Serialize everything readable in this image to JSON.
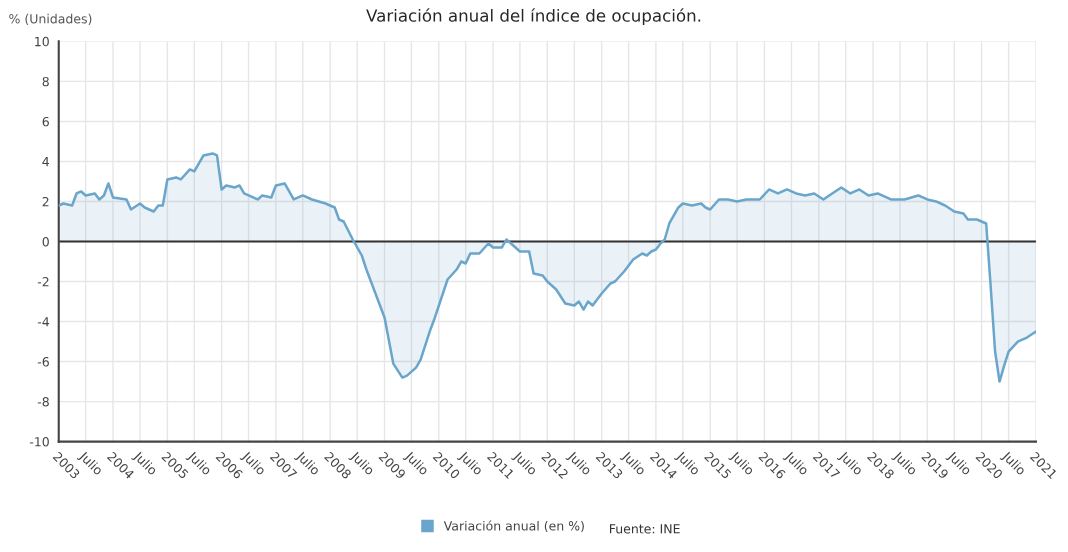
{
  "chart_data": {
    "type": "area",
    "title": "Variación anual del índice de ocupación.",
    "ylabel": "% (Unidades)",
    "annotations": [
      "Fuente: INE"
    ],
    "x": [
      "2003-01",
      "2003-02",
      "2003-04",
      "2003-05",
      "2003-06",
      "2003-07",
      "2003-09",
      "2003-10",
      "2003-11",
      "2003-12",
      "2004-01",
      "2004-04",
      "2004-05",
      "2004-07",
      "2004-08",
      "2004-10",
      "2004-11",
      "2004-12",
      "2005-01",
      "2005-03",
      "2005-04",
      "2005-06",
      "2005-07",
      "2005-09",
      "2005-11",
      "2005-12",
      "2006-01",
      "2006-02",
      "2006-04",
      "2006-05",
      "2006-06",
      "2006-09",
      "2006-10",
      "2006-12",
      "2007-01",
      "2007-03",
      "2007-05",
      "2007-07",
      "2007-09",
      "2007-12",
      "2008-02",
      "2008-03",
      "2008-04",
      "2008-06",
      "2008-08",
      "2008-09",
      "2009-01",
      "2009-03",
      "2009-05",
      "2009-06",
      "2009-08",
      "2009-09",
      "2009-11",
      "2009-12",
      "2010-03",
      "2010-05",
      "2010-06",
      "2010-07",
      "2010-08",
      "2010-10",
      "2010-12",
      "2011-01",
      "2011-03",
      "2011-04",
      "2011-06",
      "2011-07",
      "2011-09",
      "2011-10",
      "2011-12",
      "2012-01",
      "2012-03",
      "2012-05",
      "2012-07",
      "2012-08",
      "2012-09",
      "2012-10",
      "2012-11",
      "2013-01",
      "2013-03",
      "2013-04",
      "2013-06",
      "2013-08",
      "2013-10",
      "2013-11",
      "2013-12",
      "2014-01",
      "2014-02",
      "2014-03",
      "2014-04",
      "2014-06",
      "2014-07",
      "2014-09",
      "2014-11",
      "2014-12",
      "2015-01",
      "2015-03",
      "2015-05",
      "2015-07",
      "2015-09",
      "2015-12",
      "2016-02",
      "2016-04",
      "2016-06",
      "2016-08",
      "2016-10",
      "2016-12",
      "2017-02",
      "2017-04",
      "2017-06",
      "2017-08",
      "2017-10",
      "2017-12",
      "2018-02",
      "2018-05",
      "2018-07",
      "2018-08",
      "2018-11",
      "2019-01",
      "2019-03",
      "2019-05",
      "2019-07",
      "2019-09",
      "2019-10",
      "2019-12",
      "2020-02",
      "2020-03",
      "2020-04",
      "2020-05",
      "2020-06",
      "2020-07",
      "2020-09",
      "2020-11",
      "2021-01"
    ],
    "series": [
      {
        "name": "Variación anual (en %)",
        "color": "#6aa5cb",
        "values": [
          1.8,
          1.9,
          1.8,
          2.4,
          2.5,
          2.3,
          2.4,
          2.1,
          2.3,
          2.9,
          2.2,
          2.1,
          1.6,
          1.9,
          1.7,
          1.5,
          1.8,
          1.8,
          3.1,
          3.2,
          3.1,
          3.6,
          3.5,
          4.3,
          4.4,
          4.3,
          2.6,
          2.8,
          2.7,
          2.8,
          2.4,
          2.1,
          2.3,
          2.2,
          2.8,
          2.9,
          2.1,
          2.3,
          2.1,
          1.9,
          1.7,
          1.1,
          1.0,
          0.1,
          -0.7,
          -1.4,
          -3.8,
          -6.1,
          -6.8,
          -6.7,
          -6.3,
          -5.9,
          -4.5,
          -3.9,
          -1.9,
          -1.4,
          -1.0,
          -1.1,
          -0.6,
          -0.6,
          -0.1,
          -0.3,
          -0.3,
          0.1,
          -0.3,
          -0.5,
          -0.5,
          -1.6,
          -1.7,
          -2.0,
          -2.4,
          -3.1,
          -3.2,
          -3.0,
          -3.4,
          -3.0,
          -3.2,
          -2.6,
          -2.1,
          -2.0,
          -1.5,
          -0.9,
          -0.6,
          -0.7,
          -0.5,
          -0.4,
          -0.1,
          0.1,
          0.9,
          1.7,
          1.9,
          1.8,
          1.9,
          1.7,
          1.6,
          2.1,
          2.1,
          2.0,
          2.1,
          2.1,
          2.6,
          2.4,
          2.6,
          2.4,
          2.3,
          2.4,
          2.1,
          2.4,
          2.7,
          2.4,
          2.6,
          2.3,
          2.4,
          2.1,
          2.1,
          2.1,
          2.3,
          2.1,
          2.0,
          1.8,
          1.5,
          1.4,
          1.1,
          1.1,
          0.9,
          -2.1,
          -5.5,
          -7.0,
          -6.2,
          -5.5,
          -5.0,
          -4.8,
          -4.5
        ]
      }
    ],
    "xlim": [
      "2003",
      "2021"
    ],
    "xticks": [
      {
        "value": "2003",
        "label": "2003"
      },
      {
        "value": "2003-07",
        "label": "Julio"
      },
      {
        "value": "2004",
        "label": "2004"
      },
      {
        "value": "2004-07",
        "label": "Julio"
      },
      {
        "value": "2005",
        "label": "2005"
      },
      {
        "value": "2005-07",
        "label": "Julio"
      },
      {
        "value": "2006",
        "label": "2006"
      },
      {
        "value": "2006-07",
        "label": "Julio"
      },
      {
        "value": "2007",
        "label": "2007"
      },
      {
        "value": "2007-07",
        "label": "Julio"
      },
      {
        "value": "2008",
        "label": "2008"
      },
      {
        "value": "2008-07",
        "label": "Julio"
      },
      {
        "value": "2009",
        "label": "2009"
      },
      {
        "value": "2009-07",
        "label": "Julio"
      },
      {
        "value": "2010",
        "label": "2010"
      },
      {
        "value": "2010-07",
        "label": "Julio"
      },
      {
        "value": "2011",
        "label": "2011"
      },
      {
        "value": "2011-07",
        "label": "Julio"
      },
      {
        "value": "2012",
        "label": "2012"
      },
      {
        "value": "2012-07",
        "label": "Julio"
      },
      {
        "value": "2013",
        "label": "2013"
      },
      {
        "value": "2013-07",
        "label": "Julio"
      },
      {
        "value": "2014",
        "label": "2014"
      },
      {
        "value": "2014-07",
        "label": "Julio"
      },
      {
        "value": "2015",
        "label": "2015"
      },
      {
        "value": "2015-07",
        "label": "Julio"
      },
      {
        "value": "2016",
        "label": "2016"
      },
      {
        "value": "2016-07",
        "label": "Julio"
      },
      {
        "value": "2017",
        "label": "2017"
      },
      {
        "value": "2017-07",
        "label": "Julio"
      },
      {
        "value": "2018",
        "label": "2018"
      },
      {
        "value": "2018-07",
        "label": "Julio"
      },
      {
        "value": "2019",
        "label": "2019"
      },
      {
        "value": "2019-07",
        "label": "Julio"
      },
      {
        "value": "2020",
        "label": "2020"
      },
      {
        "value": "2020-07",
        "label": "Julio"
      },
      {
        "value": "2021",
        "label": "2021"
      }
    ],
    "ylim": [
      -10,
      10
    ],
    "yticks": [
      -10,
      -8,
      -6,
      -4,
      -2,
      0,
      2,
      4,
      6,
      8,
      10
    ],
    "ref_lines": [
      {
        "axis": "y",
        "value": 0,
        "color": "#333333"
      }
    ],
    "grid": true,
    "legend": "bottom"
  }
}
